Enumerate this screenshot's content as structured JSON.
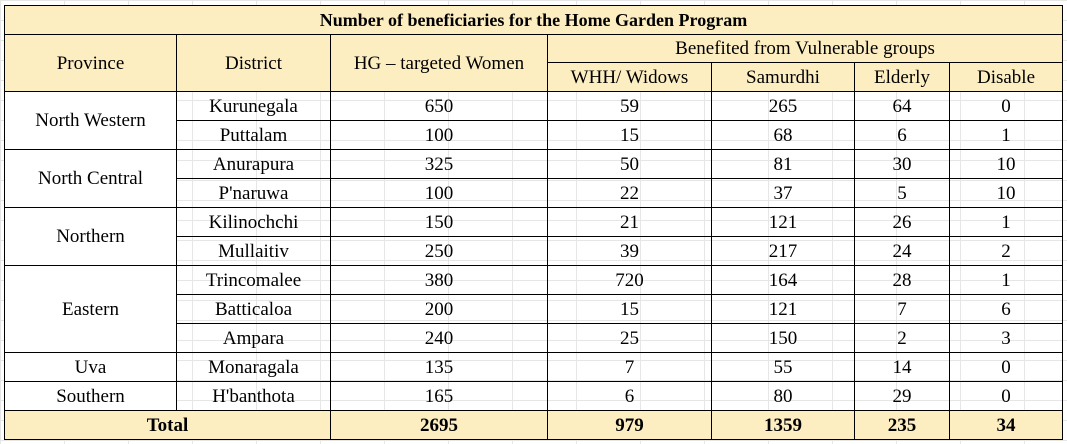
{
  "title": "Number of beneficiaries for the Home Garden Program",
  "headers": {
    "province": "Province",
    "district": "District",
    "hg_targeted": "HG – targeted Women",
    "vulnerable_group": "Benefited from Vulnerable groups",
    "whh": "WHH/ Widows",
    "samurdhi": "Samurdhi",
    "elderly": "Elderly",
    "disable": "Disable"
  },
  "provinces": [
    {
      "name": "North Western",
      "rows": [
        {
          "district": "Kurunegala",
          "hg": "650",
          "whh": "59",
          "samurdhi": "265",
          "elderly": "64",
          "disable": "0"
        },
        {
          "district": "Puttalam",
          "hg": "100",
          "whh": "15",
          "samurdhi": "68",
          "elderly": "6",
          "disable": "1"
        }
      ]
    },
    {
      "name": "North Central",
      "rows": [
        {
          "district": "Anurapura",
          "hg": "325",
          "whh": "50",
          "samurdhi": "81",
          "elderly": "30",
          "disable": "10"
        },
        {
          "district": "P'naruwa",
          "hg": "100",
          "whh": "22",
          "samurdhi": "37",
          "elderly": "5",
          "disable": "10"
        }
      ]
    },
    {
      "name": "Northern",
      "rows": [
        {
          "district": "Kilinochchi",
          "hg": "150",
          "whh": "21",
          "samurdhi": "121",
          "elderly": "26",
          "disable": "1"
        },
        {
          "district": "Mullaitiv",
          "hg": "250",
          "whh": "39",
          "samurdhi": "217",
          "elderly": "24",
          "disable": "2"
        }
      ]
    },
    {
      "name": "Eastern",
      "rows": [
        {
          "district": "Trincomalee",
          "hg": "380",
          "whh": "720",
          "samurdhi": "164",
          "elderly": "28",
          "disable": "1"
        },
        {
          "district": "Batticaloa",
          "hg": "200",
          "whh": "15",
          "samurdhi": "121",
          "elderly": "7",
          "disable": "6"
        },
        {
          "district": "Ampara",
          "hg": "240",
          "whh": "25",
          "samurdhi": "150",
          "elderly": "2",
          "disable": "3"
        }
      ]
    },
    {
      "name": "Uva",
      "rows": [
        {
          "district": "Monaragala",
          "hg": "135",
          "whh": "7",
          "samurdhi": "55",
          "elderly": "14",
          "disable": "0"
        }
      ]
    },
    {
      "name": "Southern",
      "rows": [
        {
          "district": "H'banthota",
          "hg": "165",
          "whh": "6",
          "samurdhi": "80",
          "elderly": "29",
          "disable": "0"
        }
      ]
    }
  ],
  "total": {
    "label": "Total",
    "hg": "2695",
    "whh": "979",
    "samurdhi": "1359",
    "elderly": "235",
    "disable": "34"
  },
  "colors": {
    "header_fill": "#fdeec2",
    "border": "#000000",
    "gridlines": "#e6e6e6"
  }
}
